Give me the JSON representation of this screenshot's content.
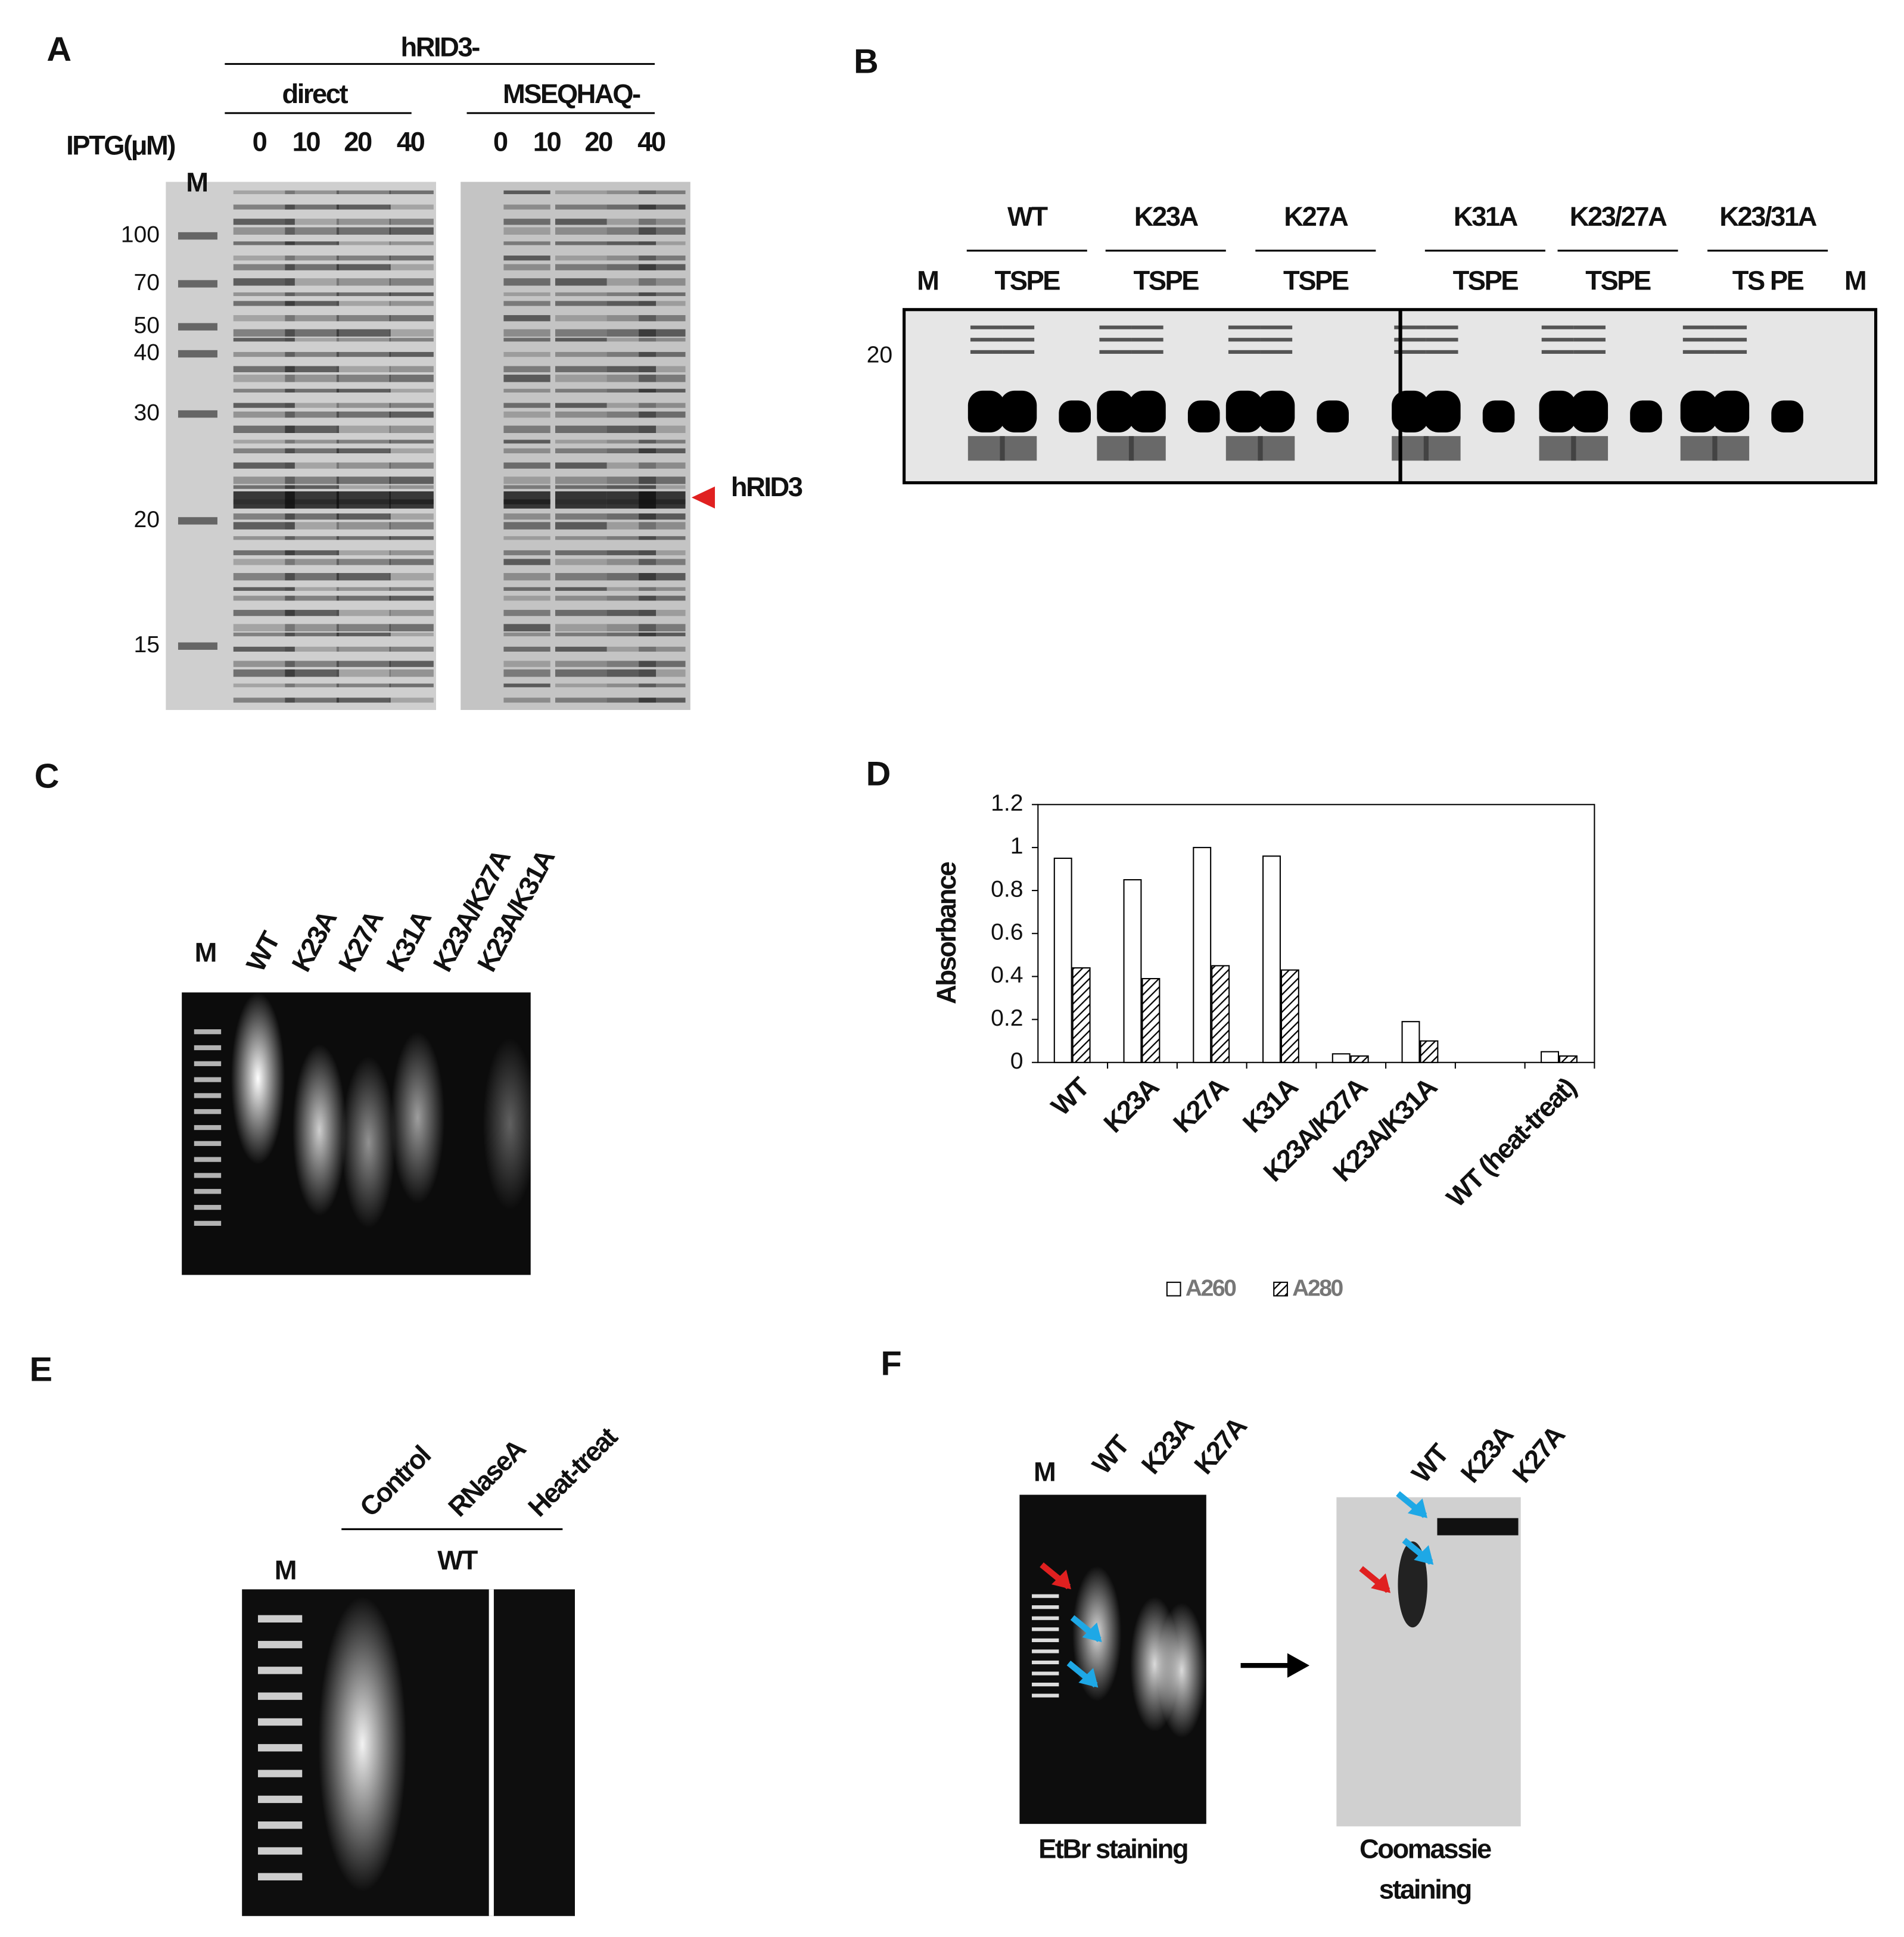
{
  "panels": {
    "A": {
      "label": "A",
      "construct": "hRID3-",
      "groups": [
        "direct",
        "MSEQHAQ-"
      ],
      "iptg_label": "IPTG(μM)",
      "lanes": [
        "0",
        "10",
        "20",
        "40",
        "0",
        "10",
        "20",
        "40"
      ],
      "marker_lane": "M",
      "marker_sizes": [
        "100",
        "70",
        "50",
        "40",
        "30",
        "20",
        "15"
      ],
      "band_label": "hRID3"
    },
    "B": {
      "label": "B",
      "groups": [
        {
          "name": "WT",
          "lanes": "TSPE"
        },
        {
          "name": "K23A",
          "lanes": "TSPE"
        },
        {
          "name": "K27A",
          "lanes": "TSPE"
        },
        {
          "name": "K31A",
          "lanes": "TSPE"
        },
        {
          "name": "K23/27A",
          "lanes": "TSPE"
        },
        {
          "name": "K23/31A",
          "lanes": "TS PE"
        }
      ],
      "marker_lanes": [
        "M",
        "M"
      ],
      "marker_size": "20"
    },
    "C": {
      "label": "C",
      "marker_lane": "M",
      "lanes": [
        "WT",
        "K23A",
        "K27A",
        "K31A",
        "K23A/K27A",
        "K23A/K31A"
      ]
    },
    "E": {
      "label": "E",
      "marker_lane": "M",
      "lanes": [
        "Control",
        "RNaseA",
        "Heat-treat"
      ],
      "sample": "WT"
    },
    "F": {
      "label": "F",
      "etbr": {
        "marker_lane": "M",
        "lanes": [
          "WT",
          "K23A",
          "K27A"
        ],
        "caption": "EtBr staining"
      },
      "coomassie": {
        "lanes": [
          "WT",
          "K23A",
          "K27A"
        ],
        "caption": [
          "Coomassie",
          "staining"
        ]
      }
    }
  },
  "chart_data": {
    "type": "bar",
    "panel_label": "D",
    "y_label": "Absorbance",
    "categories": [
      "WT",
      "K23A",
      "K27A",
      "K31A",
      "K23A/K27A",
      "K23A/K31A",
      null,
      "WT (heat-treat)"
    ],
    "series": [
      {
        "name": "A260",
        "color": "#ffffff",
        "values": [
          0.95,
          0.85,
          1.0,
          0.96,
          0.04,
          0.19,
          null,
          0.05
        ]
      },
      {
        "name": "A280",
        "color": "hatch",
        "values": [
          0.44,
          0.39,
          0.45,
          0.43,
          0.03,
          0.1,
          null,
          0.03
        ]
      }
    ],
    "ylim": [
      0,
      1.2
    ],
    "yticks": [
      0,
      0.2,
      0.4,
      0.6,
      0.8,
      1,
      1.2
    ],
    "legend": "bottom"
  }
}
